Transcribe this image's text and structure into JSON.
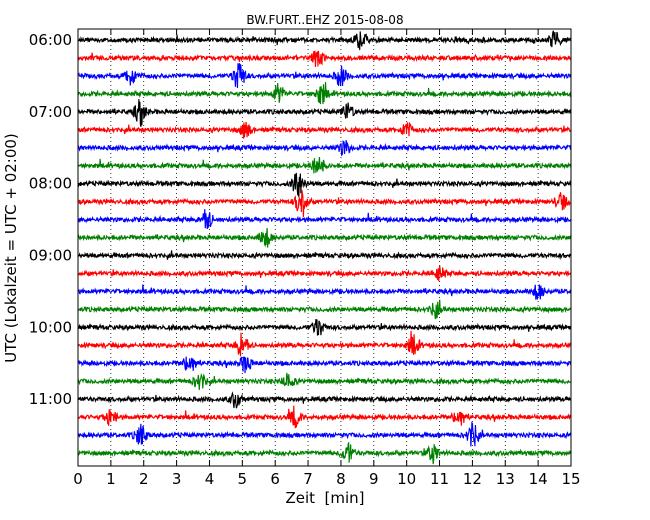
{
  "chart_data": {
    "type": "line",
    "title": "BW.FURT..EHZ 2015-08-08",
    "xlabel": "Zeit  [min]",
    "ylabel": "UTC (Lokalzeit = UTC + 02:00)",
    "xlim": [
      0,
      15
    ],
    "x_ticks": [
      "0",
      "1",
      "2",
      "3",
      "4",
      "5",
      "6",
      "7",
      "8",
      "9",
      "10",
      "11",
      "12",
      "13",
      "14",
      "15"
    ],
    "y_ticks": [
      "06:00",
      "07:00",
      "08:00",
      "09:00",
      "10:00",
      "11:00"
    ],
    "grid": "vertical dotted lines at each minute",
    "colors": [
      "#000000",
      "#ff0000",
      "#0000ff",
      "#008000"
    ],
    "trace_start_times": [
      "06:00",
      "06:15",
      "06:30",
      "06:45",
      "07:00",
      "07:15",
      "07:30",
      "07:45",
      "08:00",
      "08:15",
      "08:30",
      "08:45",
      "09:00",
      "09:15",
      "09:30",
      "09:45",
      "10:00",
      "10:15",
      "10:30",
      "10:45",
      "11:00",
      "11:15",
      "11:30",
      "11:45"
    ],
    "events": [
      {
        "row": 1,
        "minute": 8.6,
        "amp": 1.4
      },
      {
        "row": 1,
        "minute": 14.5,
        "amp": 1.3
      },
      {
        "row": 2,
        "minute": 7.3,
        "amp": 1.5
      },
      {
        "row": 3,
        "minute": 1.6,
        "amp": 1.4
      },
      {
        "row": 3,
        "minute": 4.9,
        "amp": 2.6
      },
      {
        "row": 3,
        "minute": 8.0,
        "amp": 1.6
      },
      {
        "row": 4,
        "minute": 6.1,
        "amp": 1.5
      },
      {
        "row": 4,
        "minute": 7.4,
        "amp": 1.6
      },
      {
        "row": 5,
        "minute": 1.9,
        "amp": 2.0
      },
      {
        "row": 5,
        "minute": 8.2,
        "amp": 1.3
      },
      {
        "row": 6,
        "minute": 5.1,
        "amp": 1.3
      },
      {
        "row": 6,
        "minute": 10.0,
        "amp": 1.2
      },
      {
        "row": 7,
        "minute": 8.1,
        "amp": 1.2
      },
      {
        "row": 8,
        "minute": 7.3,
        "amp": 1.9
      },
      {
        "row": 9,
        "minute": 6.7,
        "amp": 2.3
      },
      {
        "row": 10,
        "minute": 6.8,
        "amp": 2.6
      },
      {
        "row": 10,
        "minute": 14.7,
        "amp": 1.4
      },
      {
        "row": 11,
        "minute": 3.9,
        "amp": 1.8
      },
      {
        "row": 12,
        "minute": 5.7,
        "amp": 1.7
      },
      {
        "row": 14,
        "minute": 11.0,
        "amp": 1.1
      },
      {
        "row": 15,
        "minute": 14.0,
        "amp": 1.3
      },
      {
        "row": 16,
        "minute": 10.9,
        "amp": 1.2
      },
      {
        "row": 17,
        "minute": 7.3,
        "amp": 1.5
      },
      {
        "row": 18,
        "minute": 5.0,
        "amp": 2.2
      },
      {
        "row": 18,
        "minute": 10.2,
        "amp": 1.5
      },
      {
        "row": 19,
        "minute": 3.4,
        "amp": 1.8
      },
      {
        "row": 19,
        "minute": 5.1,
        "amp": 1.4
      },
      {
        "row": 20,
        "minute": 3.7,
        "amp": 1.4
      },
      {
        "row": 20,
        "minute": 6.4,
        "amp": 1.2
      },
      {
        "row": 21,
        "minute": 4.8,
        "amp": 1.3
      },
      {
        "row": 22,
        "minute": 1.0,
        "amp": 1.3
      },
      {
        "row": 22,
        "minute": 6.6,
        "amp": 1.6
      },
      {
        "row": 22,
        "minute": 11.6,
        "amp": 1.6
      },
      {
        "row": 23,
        "minute": 1.9,
        "amp": 1.7
      },
      {
        "row": 23,
        "minute": 12.0,
        "amp": 1.9
      },
      {
        "row": 24,
        "minute": 8.2,
        "amp": 1.7
      },
      {
        "row": 24,
        "minute": 10.8,
        "amp": 1.5
      }
    ]
  }
}
